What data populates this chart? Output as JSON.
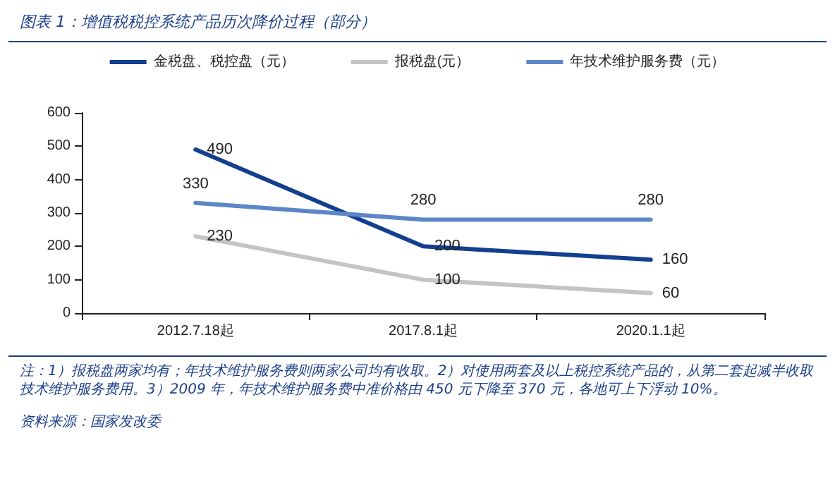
{
  "chart_data": {
    "type": "line",
    "title": "图表 1：增值税税控系统产品历次降价过程（部分）",
    "categories": [
      "2012.7.18起",
      "2017.8.1起",
      "2020.1.1起"
    ],
    "series": [
      {
        "name": "金税盘、税控盘（元）",
        "color": "#123f8f",
        "values": [
          490,
          200,
          160
        ]
      },
      {
        "name": "报税盘(元）",
        "color": "#c4c4c4",
        "values": [
          230,
          100,
          60
        ]
      },
      {
        "name": "年技术维护服务费（元）",
        "color": "#5b87c8",
        "values": [
          330,
          280,
          280
        ]
      }
    ],
    "ylim": [
      0,
      600
    ],
    "yticks": [
      0,
      100,
      200,
      300,
      400,
      500,
      600
    ],
    "grid": false,
    "legend": "top",
    "marker": "none",
    "line_style": "solid",
    "data_labels": true,
    "annotations": [
      "注：1）报税盘两家均有；年技术维护服务费则两家公司均有收取。2）对使用两套及以上税控系统产品的，从第二套起减半收取技术维护服务费用。3）2009 年，年技术维护服务费中准价格由 450 元下降至 370 元，各地可上下浮动 10%。",
      "资料来源：国家发改委"
    ]
  }
}
